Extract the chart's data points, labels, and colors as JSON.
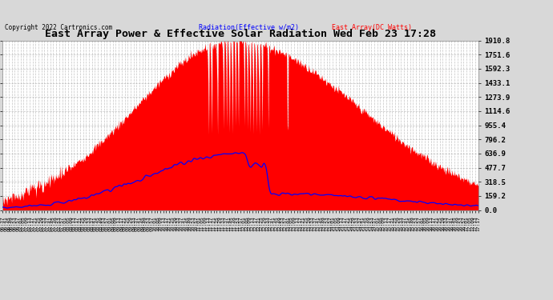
{
  "title": "East Array Power & Effective Solar Radiation Wed Feb 23 17:28",
  "copyright": "Copyright 2022 Cartronics.com",
  "legend_radiation": "Radiation(Effective w/m2)",
  "legend_east": "East Array(DC Watts)",
  "ymax": 1910.8,
  "yticks": [
    0.0,
    159.2,
    318.5,
    477.7,
    636.9,
    796.2,
    955.4,
    1114.6,
    1273.9,
    1433.1,
    1592.3,
    1751.6,
    1910.8
  ],
  "background_color": "#d8d8d8",
  "plot_bg_color": "#ffffff",
  "grid_color": "#aaaaaa",
  "radiation_color": "#ff0000",
  "east_array_color": "#0000ff",
  "title_color": "#000000",
  "copyright_color": "#000000",
  "radiation_legend_color": "#0000ff",
  "east_legend_color": "#ff0000",
  "start_hour": 6.6167,
  "end_hour": 17.2833,
  "peak_hour": 11.8,
  "rad_peak": 1910.0,
  "east_peak": 640.0
}
